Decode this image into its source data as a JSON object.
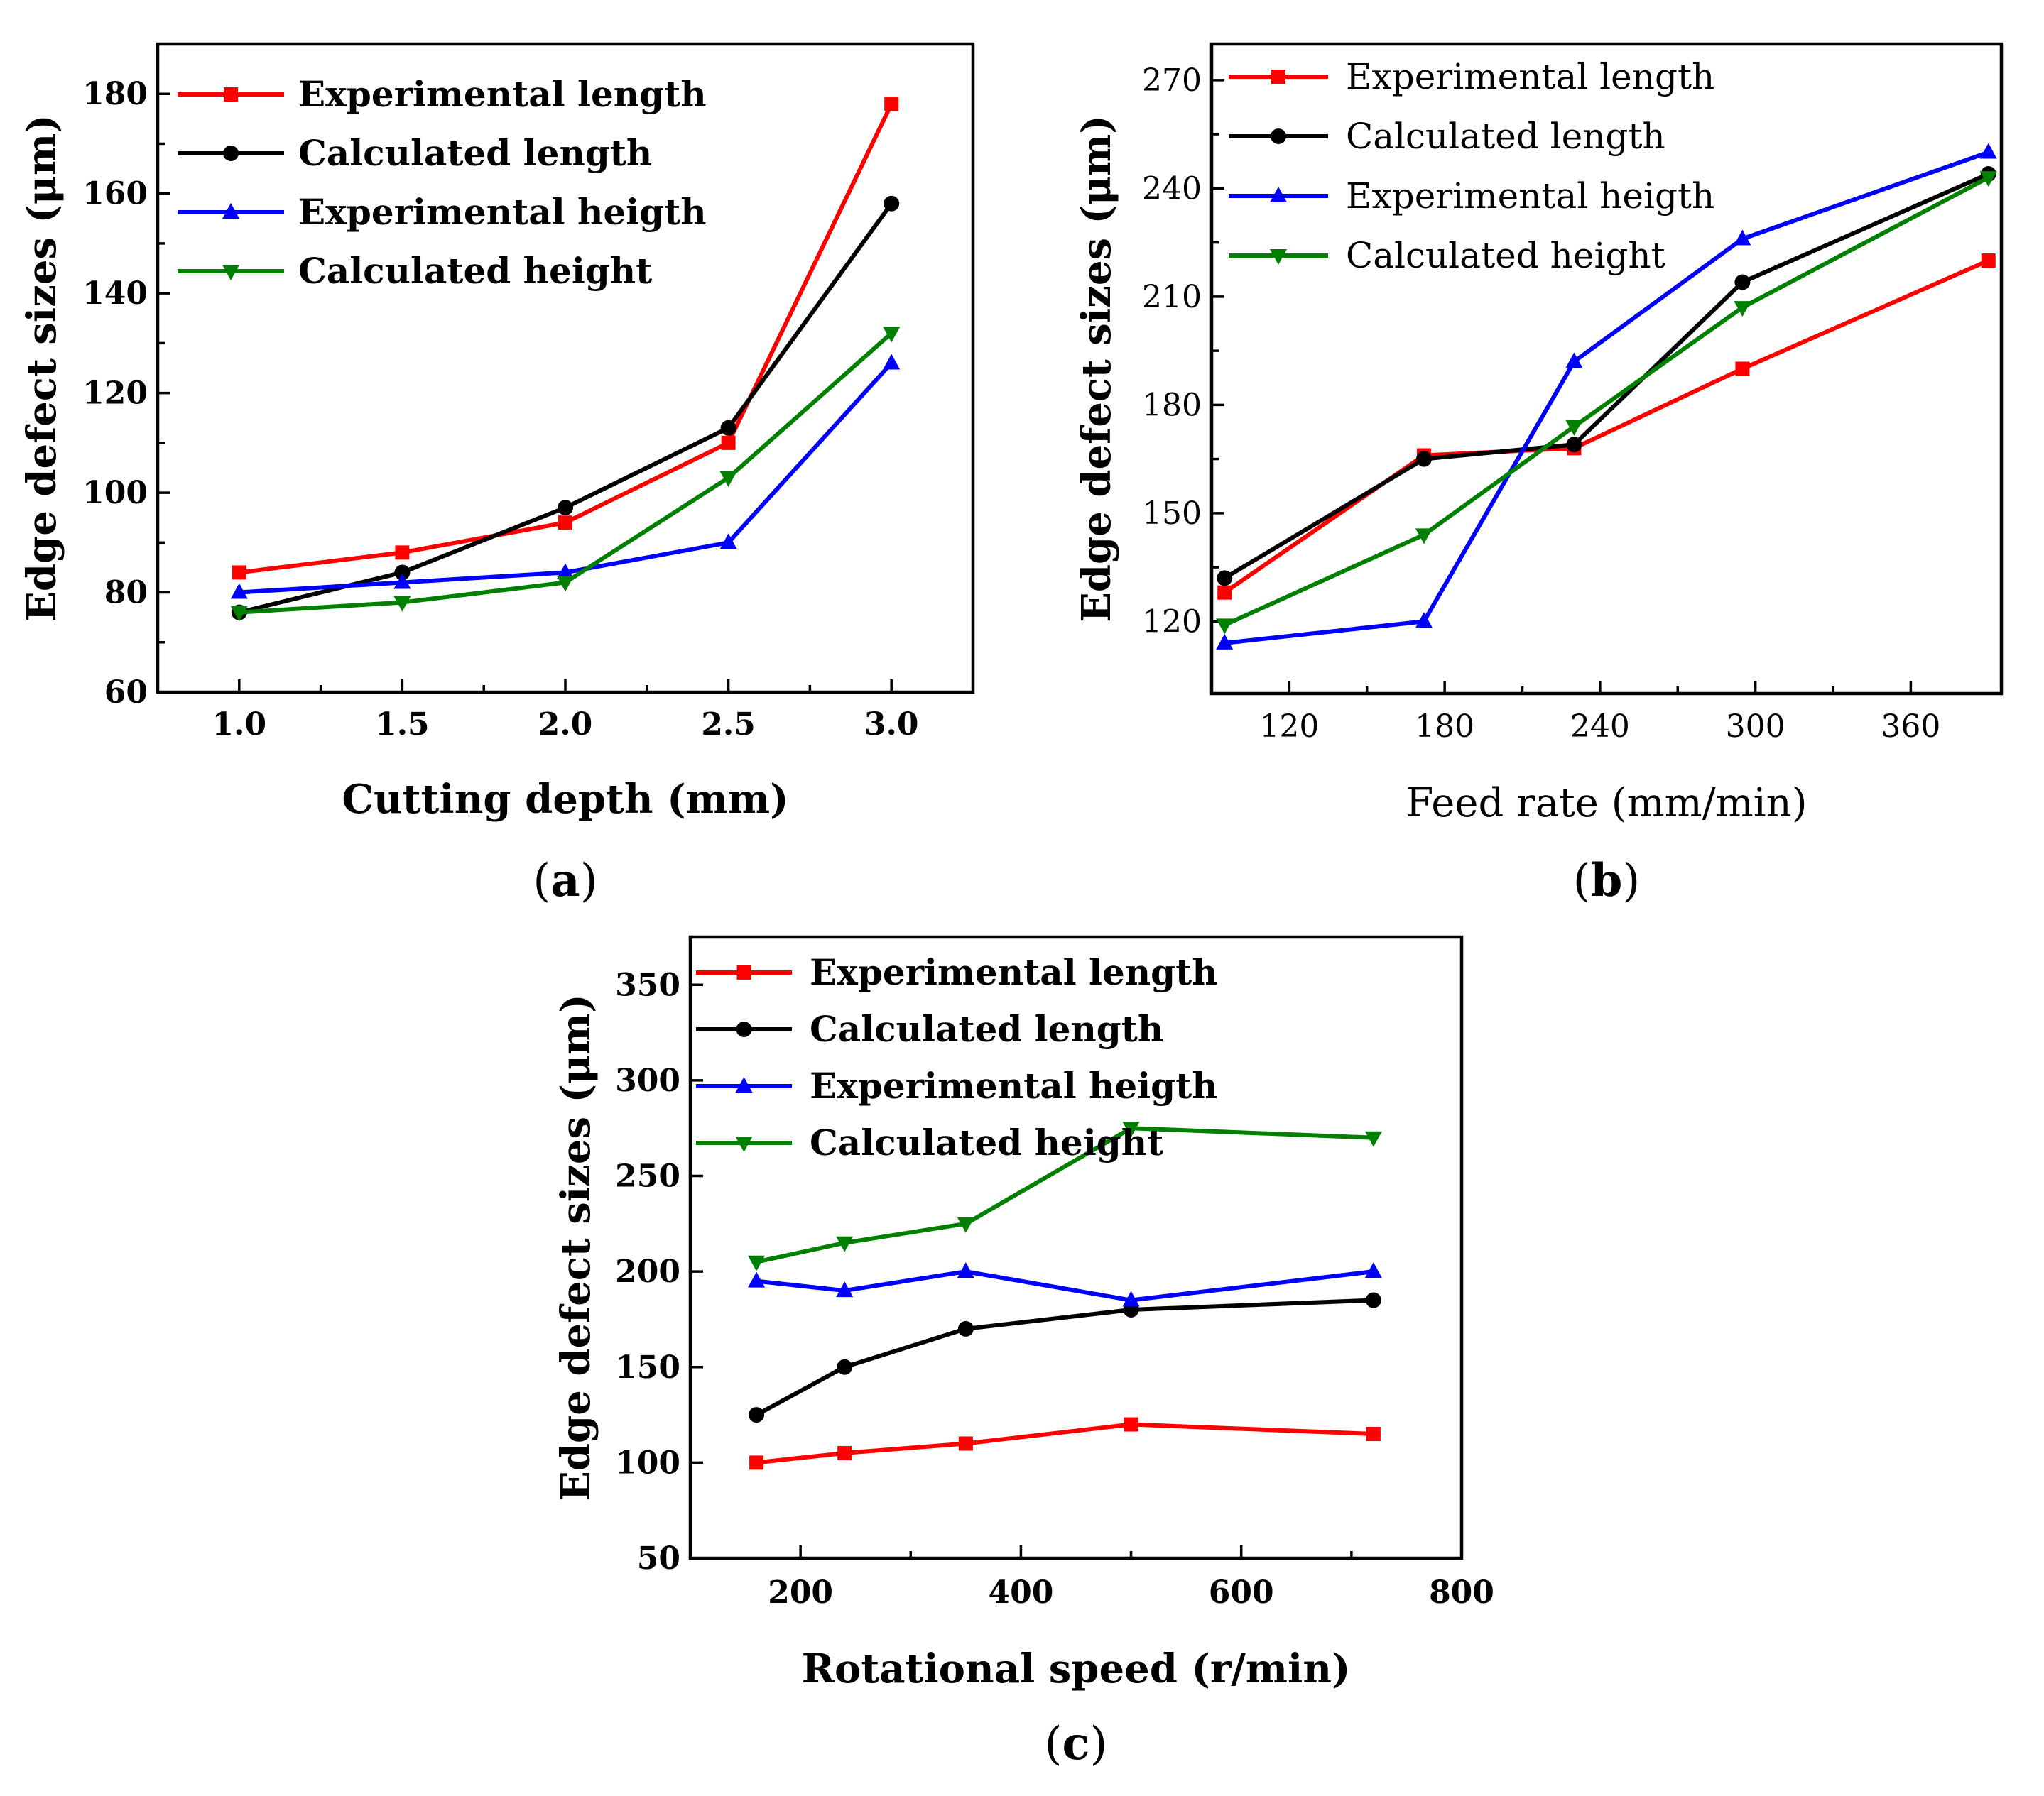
{
  "chart_data": [
    {
      "type": "line",
      "panel_label": "(a)",
      "panel_letter": "a",
      "xlabel": "Cutting depth  (mm)",
      "ylabel": "Edge defect sizes  (μm)",
      "xlim": [
        0.75,
        3.25
      ],
      "ylim": [
        60,
        190
      ],
      "xticks": [
        1.0,
        1.5,
        2.0,
        2.5,
        3.0
      ],
      "xtick_labels": [
        "1.0",
        "1.5",
        "2.0",
        "2.5",
        "3.0"
      ],
      "yticks": [
        60,
        80,
        100,
        120,
        140,
        160,
        180
      ],
      "ytick_labels": [
        "60",
        "80",
        "100",
        "120",
        "140",
        "160",
        "180"
      ],
      "legend_position": "top-left",
      "series": [
        {
          "name": "Experimental length",
          "color": "#ff0000",
          "marker": "square",
          "x": [
            1.0,
            1.5,
            2.0,
            2.5,
            3.0
          ],
          "values": [
            84,
            88,
            94,
            110,
            178
          ]
        },
        {
          "name": "Calculated length",
          "color": "#000000",
          "marker": "circle",
          "x": [
            1.0,
            1.5,
            2.0,
            2.5,
            3.0
          ],
          "values": [
            76,
            84,
            97,
            113,
            158
          ]
        },
        {
          "name": "Experimental heigth",
          "color": "#0000ff",
          "marker": "triangle-up",
          "x": [
            1.0,
            1.5,
            2.0,
            2.5,
            3.0
          ],
          "values": [
            80,
            82,
            84,
            90,
            126
          ]
        },
        {
          "name": "Calculated height",
          "color": "#008000",
          "marker": "triangle-down",
          "x": [
            1.0,
            1.5,
            2.0,
            2.5,
            3.0
          ],
          "values": [
            76,
            78,
            82,
            103,
            132
          ]
        }
      ]
    },
    {
      "type": "line",
      "panel_label": "(b)",
      "panel_letter": "b",
      "xlabel": "Feed rate (mm/min)",
      "ylabel": "Edge defect sizes  (μm)",
      "xlim": [
        90,
        395
      ],
      "ylim": [
        100,
        280
      ],
      "xticks": [
        120,
        180,
        240,
        300,
        360
      ],
      "xtick_labels": [
        "120",
        "180",
        "240",
        "300",
        "360"
      ],
      "yticks": [
        120,
        150,
        180,
        210,
        240,
        270
      ],
      "ytick_labels": [
        "120",
        "150",
        "180",
        "210",
        "240",
        "270"
      ],
      "legend_position": "top-left",
      "series": [
        {
          "name": "Experimental length",
          "color": "#ff0000",
          "marker": "square",
          "x": [
            95,
            172,
            230,
            295,
            390
          ],
          "values": [
            128,
            166,
            168,
            190,
            220
          ]
        },
        {
          "name": "Calculated length",
          "color": "#000000",
          "marker": "circle",
          "x": [
            95,
            172,
            230,
            295,
            390
          ],
          "values": [
            132,
            165,
            169,
            214,
            244
          ]
        },
        {
          "name": "Experimental heigth",
          "color": "#0000ff",
          "marker": "triangle-up",
          "x": [
            95,
            172,
            230,
            295,
            390
          ],
          "values": [
            114,
            120,
            192,
            226,
            250
          ]
        },
        {
          "name": "Calculated height",
          "color": "#008000",
          "marker": "triangle-down",
          "x": [
            95,
            172,
            230,
            295,
            390
          ],
          "values": [
            119,
            144,
            174,
            207,
            243
          ]
        }
      ]
    },
    {
      "type": "line",
      "panel_label": "(c)",
      "panel_letter": "c",
      "xlabel": "Rotational speed (r/min)",
      "ylabel": "Edge defect sizes  (μm)",
      "xlim": [
        100,
        800
      ],
      "ylim": [
        50,
        375
      ],
      "xticks": [
        200,
        400,
        600,
        800
      ],
      "xtick_labels": [
        "200",
        "400",
        "600",
        "800"
      ],
      "yticks": [
        50,
        100,
        150,
        200,
        250,
        300,
        350
      ],
      "ytick_labels": [
        "50",
        "100",
        "150",
        "200",
        "250",
        "300",
        "350"
      ],
      "legend_position": "top-left",
      "series": [
        {
          "name": "Experimental length",
          "color": "#ff0000",
          "marker": "square",
          "x": [
            160,
            240,
            350,
            500,
            720
          ],
          "values": [
            100,
            105,
            110,
            120,
            115
          ]
        },
        {
          "name": "Calculated length",
          "color": "#000000",
          "marker": "circle",
          "x": [
            160,
            240,
            350,
            500,
            720
          ],
          "values": [
            125,
            150,
            170,
            180,
            185
          ]
        },
        {
          "name": "Experimental heigth",
          "color": "#0000ff",
          "marker": "triangle-up",
          "x": [
            160,
            240,
            350,
            500,
            720
          ],
          "values": [
            195,
            190,
            200,
            185,
            200
          ]
        },
        {
          "name": "Calculated height",
          "color": "#008000",
          "marker": "triangle-down",
          "x": [
            160,
            240,
            350,
            500,
            720
          ],
          "values": [
            205,
            215,
            225,
            275,
            270
          ]
        }
      ]
    }
  ]
}
